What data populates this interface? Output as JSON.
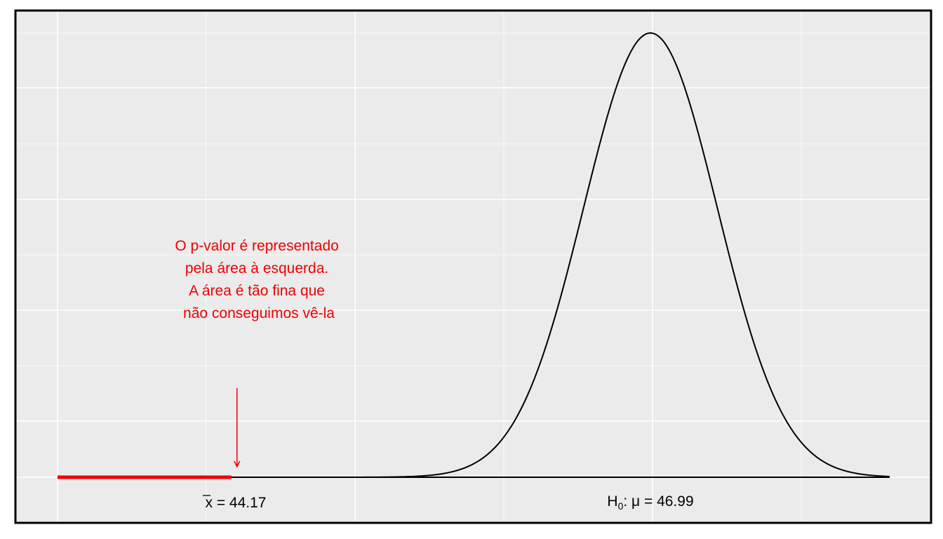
{
  "chart_data": {
    "type": "line",
    "title": "",
    "xlabel": "",
    "ylabel": "",
    "distribution": {
      "name": "normal",
      "mean": 46.99,
      "sd": 0.45
    },
    "xlim": [
      43.0,
      48.6
    ],
    "ylim": [
      0,
      1
    ],
    "grid": true,
    "sample_mean": 44.17,
    "pvalue_region": {
      "from": 43.0,
      "to": 44.17,
      "color": "#ee0000"
    },
    "labels": {
      "sample": "x̄ = 44.17",
      "sample_bar_char": "x",
      "sample_rest": " = 44.17",
      "null": "H₀: μ = 46.99",
      "null_h": "H",
      "null_sub": "0",
      "null_rest": ": μ = 46.99"
    },
    "annotation": {
      "lines": [
        "O p-valor é representado",
        "pela área à esquerda.",
        "A área é tão fina que",
        "não conseguimos vê-la"
      ],
      "color": "#ee0000"
    },
    "colors": {
      "panel_bg": "#ebebeb",
      "grid": "#ffffff",
      "curve": "#000000",
      "highlight": "#ee0000",
      "border": "#000000"
    }
  }
}
